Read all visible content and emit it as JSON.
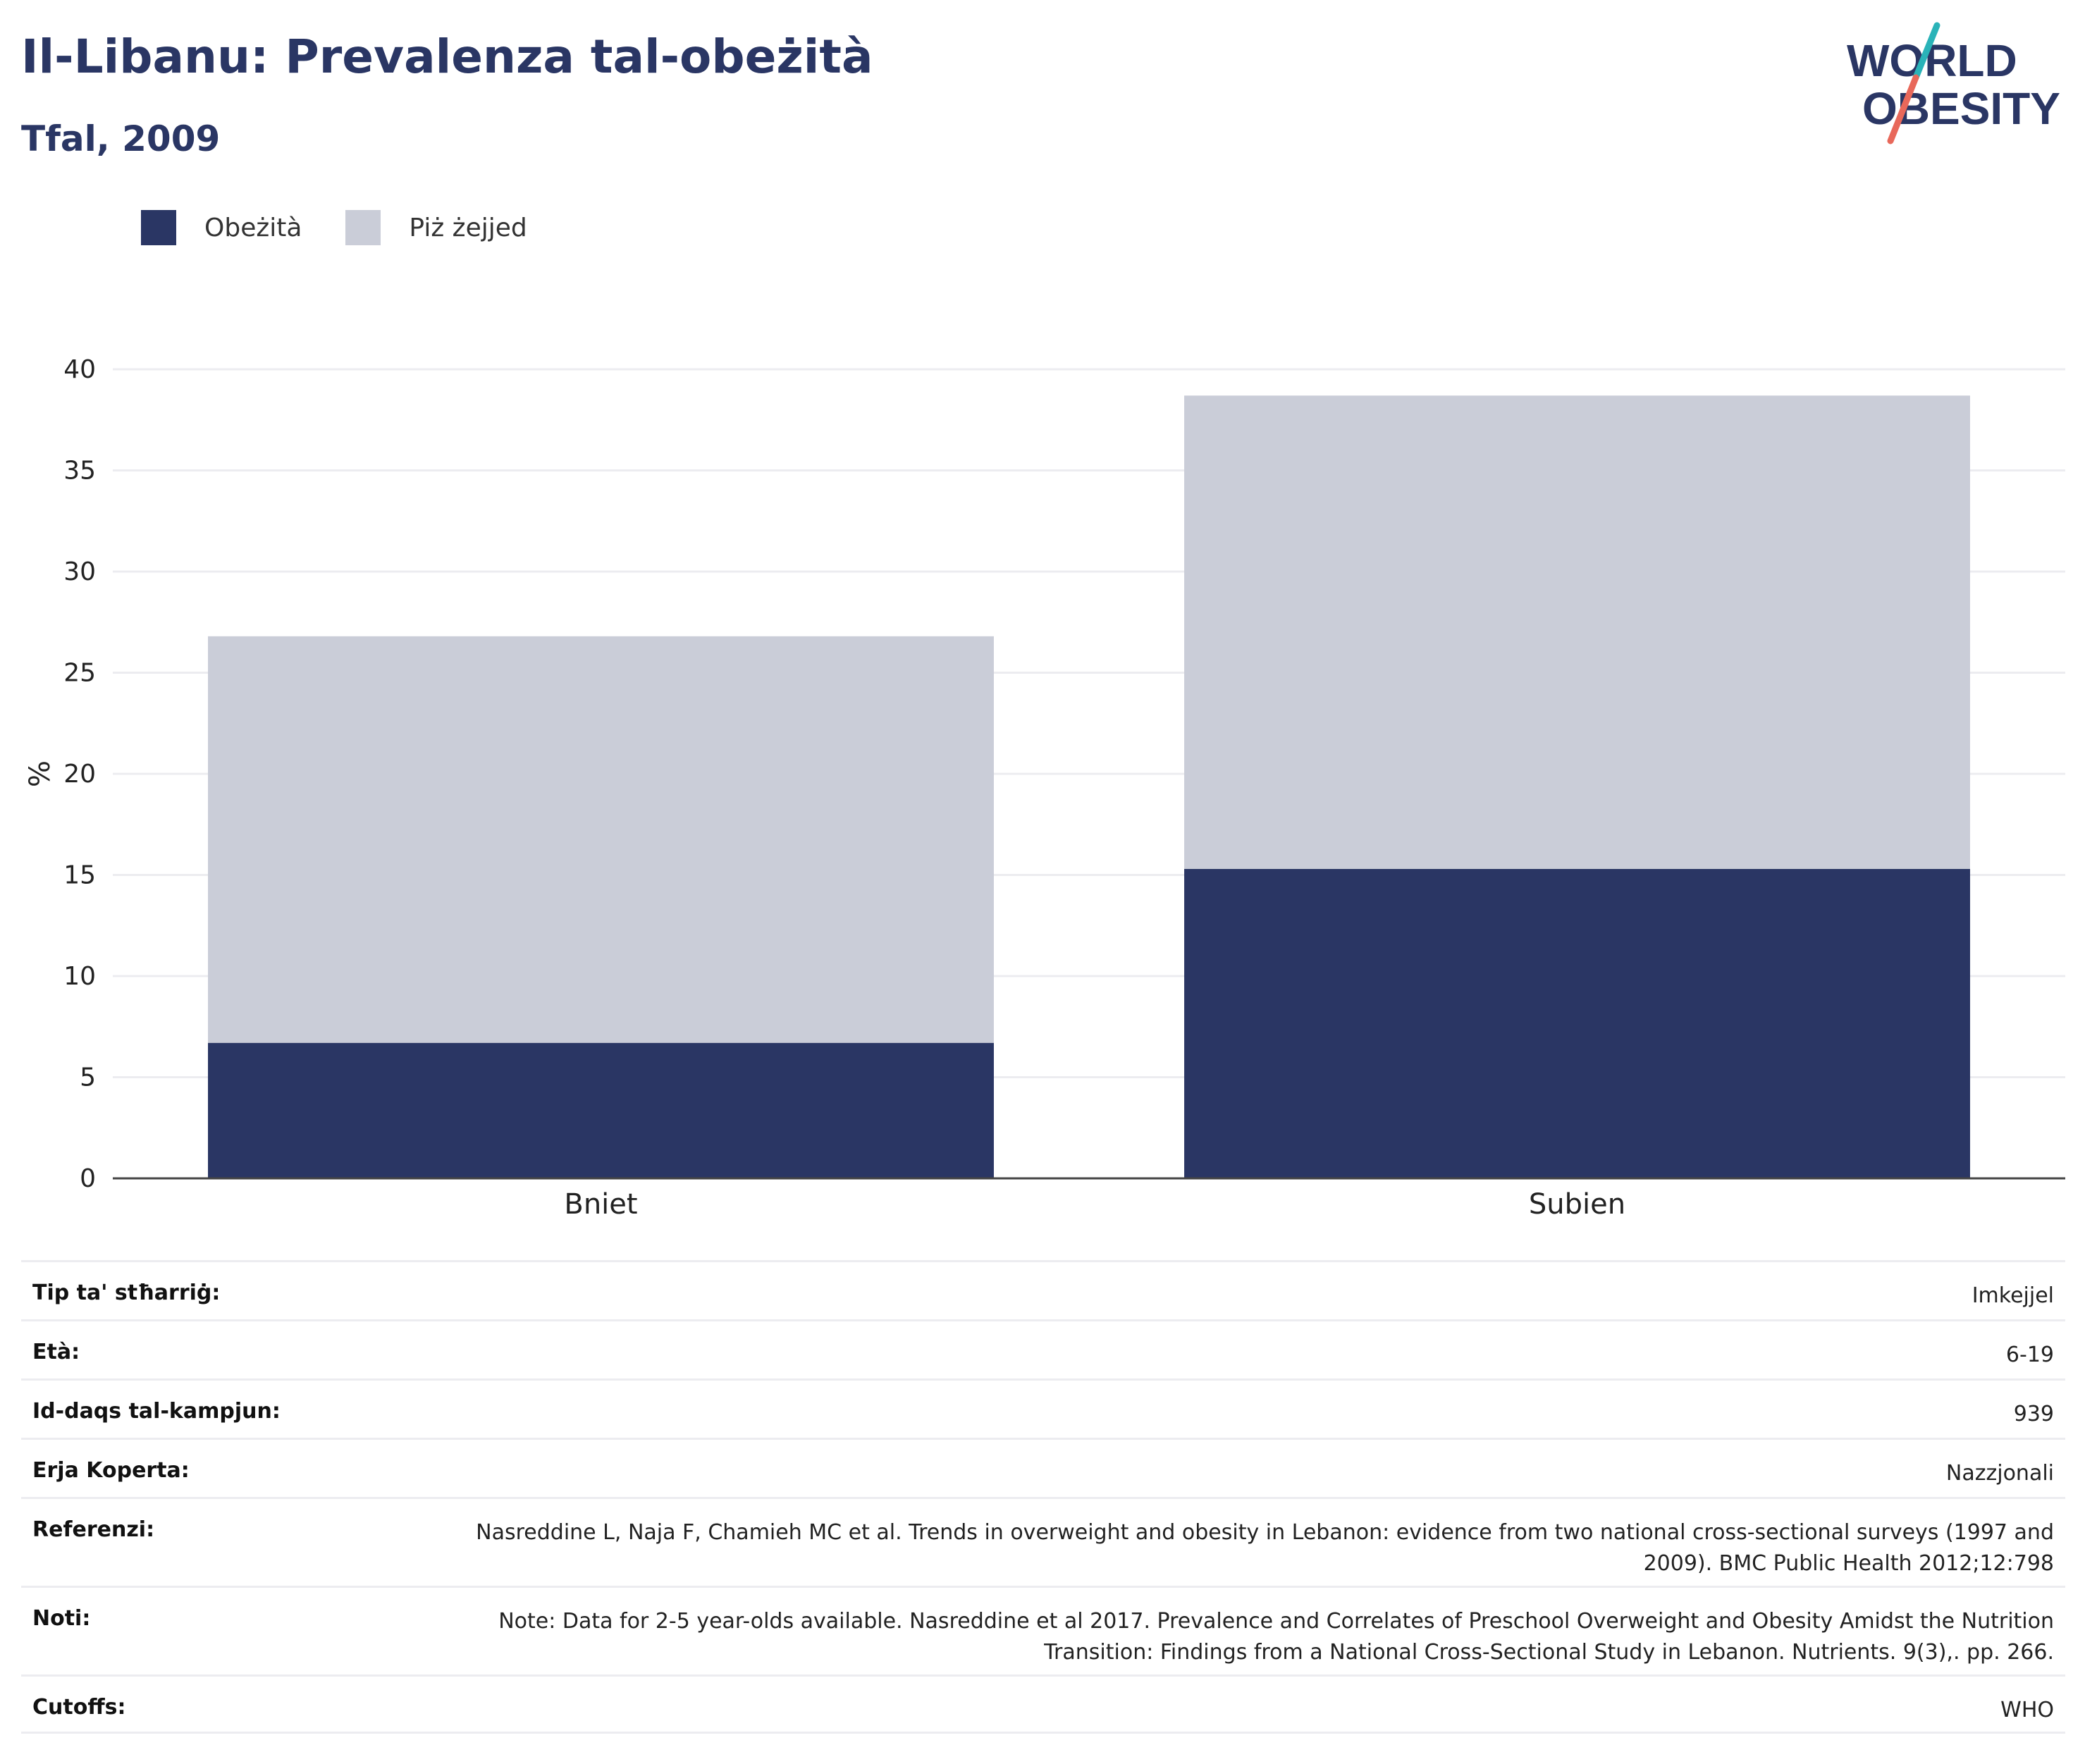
{
  "header": {
    "title": "Il-Libanu: Prevalenza tal-obeżità",
    "subtitle": "Tfal, 2009"
  },
  "logo": {
    "line1": "WORLD",
    "line2": "OBESITY"
  },
  "colors": {
    "obesity": "#2a3664",
    "overweight": "#cacdd8",
    "accent_teal": "#2ab3b8",
    "accent_coral": "#e8685a",
    "title": "#2a3664"
  },
  "chart_data": {
    "type": "bar",
    "stacked": true,
    "categories": [
      "Bniet",
      "Subien"
    ],
    "series": [
      {
        "name": "Obeżità",
        "values": [
          6.7,
          15.3
        ],
        "color": "#2a3664"
      },
      {
        "name": "Piż żejjed",
        "values": [
          20.1,
          23.4
        ],
        "color": "#cacdd8"
      }
    ],
    "ylabel": "%",
    "ylim": [
      0,
      40
    ],
    "yticks": [
      0,
      5,
      10,
      15,
      20,
      25,
      30,
      35,
      40
    ],
    "grid": true,
    "legend_position": "top-left"
  },
  "info_table": [
    {
      "label": "Tip ta' stħarriġ:",
      "value": "Imkejjel"
    },
    {
      "label": "Età:",
      "value": "6-19"
    },
    {
      "label": "Id-daqs tal-kampjun:",
      "value": "939"
    },
    {
      "label": "Erja Koperta:",
      "value": "Nazzjonali"
    },
    {
      "label": "Referenzi:",
      "value": "Nasreddine L, Naja F, Chamieh MC et al. Trends in overweight and obesity in Lebanon: evidence from two national cross-sectional surveys (1997 and 2009). BMC Public Health 2012;12:798"
    },
    {
      "label": "Noti:",
      "value": "Note: Data for 2-5 year-olds available. Nasreddine et al 2017. Prevalence and Correlates of Preschool Overweight and Obesity Amidst the Nutrition Transition: Findings from a National Cross-Sectional Study in Lebanon. Nutrients. 9(3),. pp. 266."
    },
    {
      "label": "Cutoffs:",
      "value": "WHO"
    }
  ]
}
